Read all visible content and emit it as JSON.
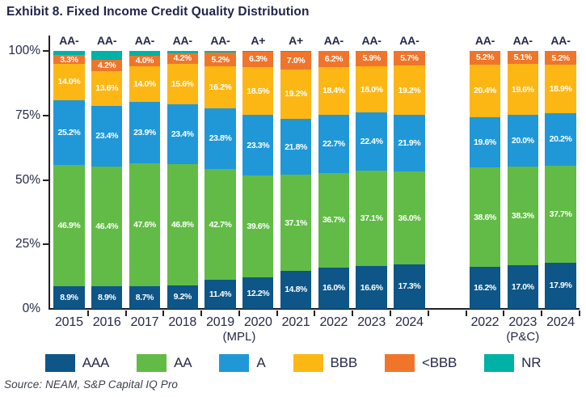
{
  "title": "Exhibit 8. Fixed Income Credit Quality Distribution",
  "source": "Source: NEAM, S&P Capital IQ Pro",
  "colors": {
    "text_navy": "#252A4A",
    "axis": "#231F20",
    "bar_label_text": "#FFFFFF"
  },
  "legend": [
    {
      "label": "AAA",
      "color": "#0D5687"
    },
    {
      "label": "AA",
      "color": "#62BB46"
    },
    {
      "label": "A",
      "color": "#2098D8"
    },
    {
      "label": "BBB",
      "color": "#FDB715"
    },
    {
      "label": "<BBB",
      "color": "#F0752B"
    },
    {
      "label": "NR",
      "color": "#00B1A5"
    }
  ],
  "chart_data": {
    "type": "bar",
    "stacked": true,
    "percent_scale": true,
    "title": "Exhibit 8. Fixed Income Credit Quality Distribution",
    "ylim": [
      0,
      100
    ],
    "yticks": [
      {
        "label": "100%",
        "value": 100
      },
      {
        "label": "75%",
        "value": 75
      },
      {
        "label": "50%",
        "value": 50
      },
      {
        "label": "25%",
        "value": 25
      },
      {
        "label": "0%",
        "value": 0
      }
    ],
    "legend_entries": [
      "AAA",
      "AA",
      "A",
      "BBB",
      "<BBB",
      "NR"
    ],
    "legend_position": "bottom",
    "groups": [
      {
        "label": "(MPL)",
        "categories": [
          "2015",
          "2016",
          "2017",
          "2018",
          "2019",
          "2020",
          "2021",
          "2022",
          "2023",
          "2024"
        ],
        "portfolio_ratings": [
          "AA-",
          "AA-",
          "AA-",
          "AA-",
          "AA-",
          "A+",
          "A+",
          "AA-",
          "AA-",
          "AA-"
        ],
        "series": [
          {
            "name": "AAA",
            "values": [
              8.9,
              8.9,
              8.7,
              9.2,
              11.4,
              12.2,
              14.8,
              16.0,
              16.6,
              17.3
            ]
          },
          {
            "name": "AA",
            "values": [
              46.9,
              46.4,
              47.6,
              46.8,
              42.7,
              39.6,
              37.1,
              36.7,
              37.1,
              36.0
            ]
          },
          {
            "name": "A",
            "values": [
              25.2,
              23.4,
              23.9,
              23.4,
              23.8,
              23.3,
              21.8,
              22.7,
              22.4,
              21.9
            ]
          },
          {
            "name": "BBB",
            "values": [
              14.0,
              13.6,
              14.0,
              15.6,
              16.2,
              18.5,
              19.2,
              18.4,
              18.0,
              19.2
            ]
          },
          {
            "name": "<BBB",
            "values": [
              3.3,
              4.2,
              4.0,
              4.2,
              5.2,
              6.3,
              7.0,
              6.2,
              5.9,
              5.7
            ]
          },
          {
            "name": "NR",
            "values": [
              1.7,
              3.5,
              1.8,
              0.8,
              0.7,
              0.1,
              0.1,
              0,
              0,
              0
            ],
            "labeled": false
          }
        ]
      },
      {
        "label": "(P&C)",
        "categories": [
          "2022",
          "2023",
          "2024"
        ],
        "portfolio_ratings": [
          "AA-",
          "AA-",
          "AA-"
        ],
        "series": [
          {
            "name": "AAA",
            "values": [
              16.2,
              17.0,
              17.9
            ]
          },
          {
            "name": "AA",
            "values": [
              38.6,
              38.3,
              37.7
            ]
          },
          {
            "name": "A",
            "values": [
              19.6,
              20.0,
              20.2
            ]
          },
          {
            "name": "BBB",
            "values": [
              20.4,
              19.6,
              18.9
            ]
          },
          {
            "name": "<BBB",
            "values": [
              5.2,
              5.1,
              5.2
            ]
          },
          {
            "name": "NR",
            "values": [
              0,
              0,
              0
            ],
            "labeled": false
          }
        ]
      }
    ]
  }
}
